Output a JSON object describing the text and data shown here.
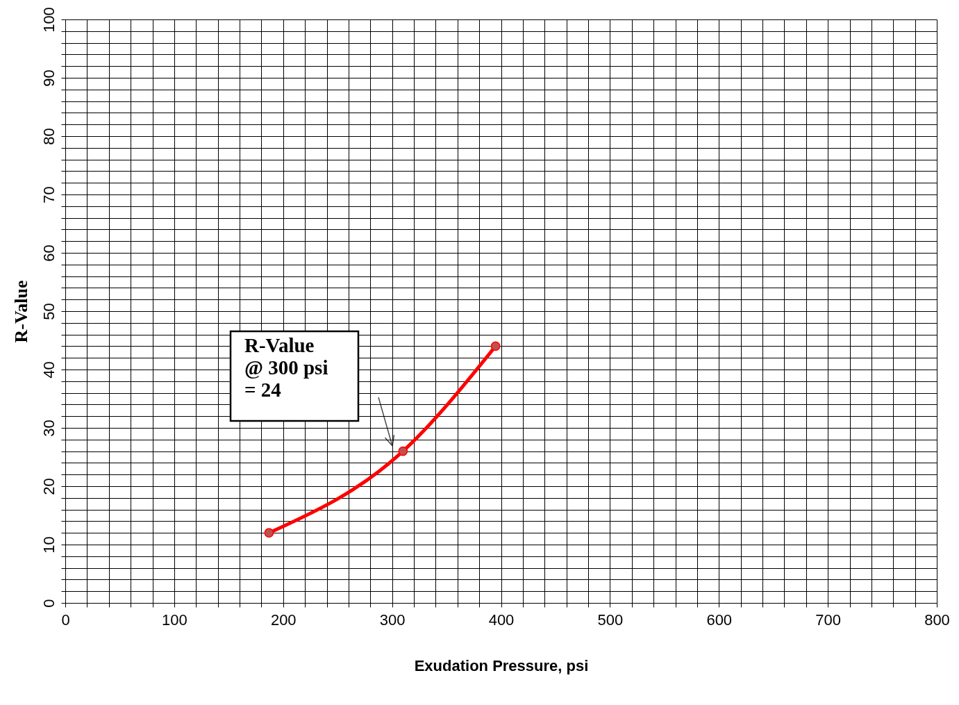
{
  "chart_data": {
    "type": "line",
    "xlabel": "Exudation Pressure, psi",
    "ylabel": "R-Value",
    "x": [
      187,
      310,
      395
    ],
    "series": [
      {
        "color": "#ff0000",
        "values": [
          12,
          26,
          44
        ]
      }
    ],
    "xlim": [
      0,
      800
    ],
    "ylim": [
      0,
      100
    ],
    "xticks": [
      0,
      {
        "value": 20,
        "label": null
      },
      {
        "value": 40,
        "label": null
      },
      {
        "value": 60,
        "label": null
      },
      {
        "value": 80,
        "label": null
      },
      100,
      {
        "value": 120,
        "label": null
      },
      {
        "value": 140,
        "label": null
      },
      {
        "value": 160,
        "label": null
      },
      {
        "value": 180,
        "label": null
      },
      200,
      {
        "value": 220,
        "label": null
      },
      {
        "value": 240,
        "label": null
      },
      {
        "value": 260,
        "label": null
      },
      {
        "value": 280,
        "label": null
      },
      300,
      {
        "value": 320,
        "label": null
      },
      {
        "value": 340,
        "label": null
      },
      {
        "value": 360,
        "label": null
      },
      {
        "value": 380,
        "label": null
      },
      400,
      {
        "value": 420,
        "label": null
      },
      {
        "value": 440,
        "label": null
      },
      {
        "value": 460,
        "label": null
      },
      {
        "value": 480,
        "label": null
      },
      500,
      {
        "value": 520,
        "label": null
      },
      {
        "value": 540,
        "label": null
      },
      {
        "value": 560,
        "label": null
      },
      {
        "value": 580,
        "label": null
      },
      600,
      {
        "value": 620,
        "label": null
      },
      {
        "value": 640,
        "label": null
      },
      {
        "value": 660,
        "label": null
      },
      {
        "value": 680,
        "label": null
      },
      700,
      {
        "value": 720,
        "label": null
      },
      {
        "value": 740,
        "label": null
      },
      {
        "value": 760,
        "label": null
      },
      {
        "value": 780,
        "label": null
      },
      800
    ],
    "yticks": [
      0,
      {
        "value": 2,
        "label": null
      },
      {
        "value": 4,
        "label": null
      },
      {
        "value": 6,
        "label": null
      },
      {
        "value": 8,
        "label": null
      },
      10,
      {
        "value": 12,
        "label": null
      },
      {
        "value": 14,
        "label": null
      },
      {
        "value": 16,
        "label": null
      },
      {
        "value": 18,
        "label": null
      },
      20,
      {
        "value": 22,
        "label": null
      },
      {
        "value": 24,
        "label": null
      },
      {
        "value": 26,
        "label": null
      },
      {
        "value": 28,
        "label": null
      },
      30,
      {
        "value": 32,
        "label": null
      },
      {
        "value": 34,
        "label": null
      },
      {
        "value": 36,
        "label": null
      },
      {
        "value": 38,
        "label": null
      },
      40,
      {
        "value": 42,
        "label": null
      },
      {
        "value": 44,
        "label": null
      },
      {
        "value": 46,
        "label": null
      },
      {
        "value": 48,
        "label": null
      },
      50,
      {
        "value": 52,
        "label": null
      },
      {
        "value": 54,
        "label": null
      },
      {
        "value": 56,
        "label": null
      },
      {
        "value": 58,
        "label": null
      },
      60,
      {
        "value": 62,
        "label": null
      },
      {
        "value": 64,
        "label": null
      },
      {
        "value": 66,
        "label": null
      },
      {
        "value": 68,
        "label": null
      },
      70,
      {
        "value": 72,
        "label": null
      },
      {
        "value": 74,
        "label": null
      },
      {
        "value": 76,
        "label": null
      },
      {
        "value": 78,
        "label": null
      },
      80,
      {
        "value": 82,
        "label": null
      },
      {
        "value": 84,
        "label": null
      },
      {
        "value": 86,
        "label": null
      },
      {
        "value": 88,
        "label": null
      },
      90,
      {
        "value": 92,
        "label": null
      },
      {
        "value": 94,
        "label": null
      },
      {
        "value": 96,
        "label": null
      },
      {
        "value": 98,
        "label": null
      },
      100
    ],
    "grid": true,
    "marker": "circle",
    "line_style": "solid",
    "annotations": [
      "R-Value\n@ 300 psi\n= 24"
    ]
  }
}
